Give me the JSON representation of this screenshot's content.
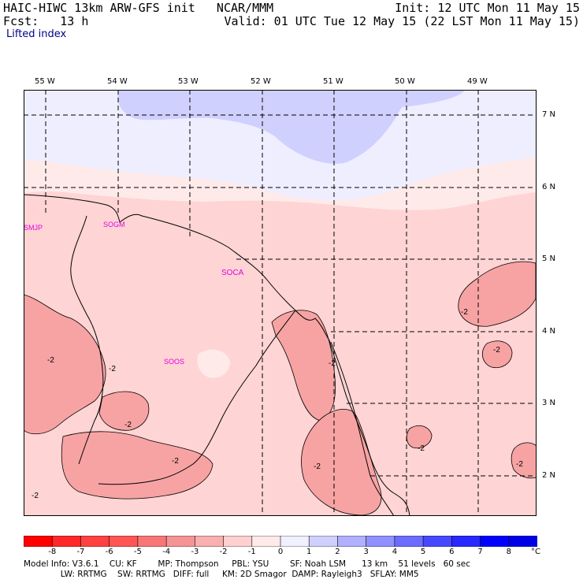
{
  "header": {
    "model_line": "HAIC-HIWC 13km ARW-GFS init   NCAR/MMM",
    "init_line": "Init: 12 UTC Mon 11 May 15",
    "fcst_line": "Fcst:   13 h",
    "valid_line": "Valid: 01 UTC Tue 12 May 15 (22 LST Mon 11 May 15)",
    "field_name": "Lifted index"
  },
  "axes": {
    "lon_labels": [
      "55 W",
      "54 W",
      "53 W",
      "52 W",
      "51 W",
      "50 W",
      "49 W"
    ],
    "lat_labels": [
      "7 N",
      "6 N",
      "5 N",
      "4 N",
      "3 N",
      "2 N"
    ]
  },
  "stations": [
    "SMJP",
    "SOGM",
    "SOCA",
    "SOOS"
  ],
  "contour_labels": [
    "-2",
    "-2",
    "-2",
    "-2",
    "-2",
    "-2",
    "-2",
    "-2",
    "-2",
    "-2",
    "-2"
  ],
  "colorbar": {
    "unit": "°C",
    "ticks": [
      "-8",
      "-7",
      "-6",
      "-5",
      "-4",
      "-3",
      "-2",
      "-1",
      "0",
      "1",
      "2",
      "3",
      "4",
      "5",
      "6",
      "7",
      "8"
    ],
    "colors": [
      "#ff0000",
      "#ff2828",
      "#ff4141",
      "#ff5555",
      "#f77777",
      "#f49494",
      "#fab0b0",
      "#ffd0d0",
      "#ffeaea",
      "#f0f0ff",
      "#d0d0ff",
      "#b0b0ff",
      "#9090ff",
      "#6c6cff",
      "#4848ff",
      "#2828ff",
      "#0000ff",
      "#0000e6"
    ]
  },
  "footer": {
    "line1": "Model Info: V3.6.1    CU: KF        MP: Thompson     PBL: YSU        SF: Noah LSM      13 km    51 levels   60 sec",
    "line2": "              LW: RRTMG    SW: RRTMG   DIFF: full     KM: 2D Smagor  DAMP: Rayleigh3   SFLAY: MM5"
  }
}
